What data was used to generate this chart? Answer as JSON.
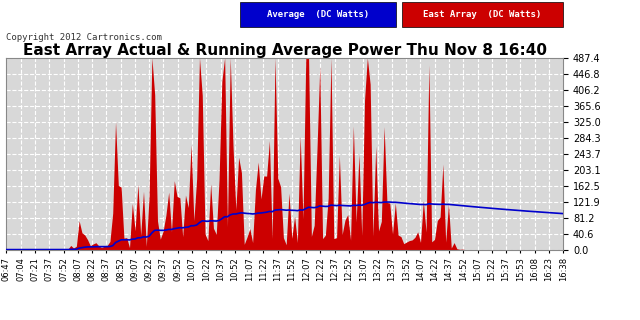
{
  "title": "East Array Actual & Running Average Power Thu Nov 8 16:40",
  "copyright": "Copyright 2012 Cartronics.com",
  "legend_avg": "Average  (DC Watts)",
  "legend_east": "East Array  (DC Watts)",
  "ylim": [
    0.0,
    487.4
  ],
  "yticks": [
    0.0,
    40.6,
    81.2,
    121.9,
    162.5,
    203.1,
    243.7,
    284.3,
    325.0,
    365.6,
    406.2,
    446.8,
    487.4
  ],
  "bg_color": "#ffffff",
  "plot_bg_color": "#d8d8d8",
  "grid_color": "#ffffff",
  "fill_color": "#cc0000",
  "avg_color": "#0000cc",
  "title_color": "#000000",
  "title_fontsize": 11,
  "xtick_labels": [
    "06:47",
    "07:04",
    "07:21",
    "07:37",
    "07:52",
    "08:07",
    "08:22",
    "08:37",
    "08:52",
    "09:07",
    "09:22",
    "09:37",
    "09:52",
    "10:07",
    "10:22",
    "10:37",
    "10:52",
    "11:07",
    "11:22",
    "11:37",
    "11:52",
    "12:07",
    "12:22",
    "12:37",
    "12:52",
    "13:07",
    "13:22",
    "13:37",
    "13:52",
    "14:07",
    "14:22",
    "14:37",
    "14:52",
    "15:07",
    "15:22",
    "15:37",
    "15:53",
    "16:08",
    "16:23",
    "16:38"
  ]
}
